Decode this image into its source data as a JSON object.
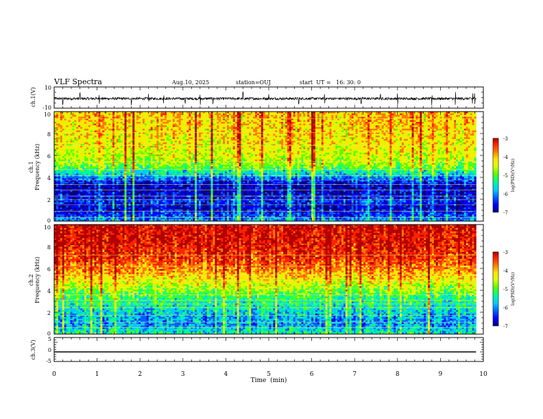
{
  "header": {
    "title": "VLF Spectra",
    "date": "Aug.10, 2025",
    "station": "station=OUJ",
    "start_ut": "start  UT =   16: 30: 0"
  },
  "colors": {
    "palette": [
      "#00007a",
      "#0000ff",
      "#0060ff",
      "#00c8ff",
      "#00ff90",
      "#5aff00",
      "#d8ff00",
      "#ffe600",
      "#ff7a00",
      "#ff2200",
      "#b00000"
    ]
  },
  "chart_data": [
    {
      "type": "line",
      "id": "ch1_waveform",
      "ylabel": "ch.1(V)",
      "ylim": [
        -10,
        10
      ],
      "ytick_labels": [
        "10",
        "-10"
      ],
      "baseline": -1,
      "noise_amplitude": 1.2,
      "spike_times_min": [
        0.2,
        0.6,
        1.05,
        1.8,
        2.2,
        2.55,
        3.05,
        3.4,
        3.7,
        4.4,
        5.0,
        5.7,
        6.3,
        7.15,
        7.6,
        8.0,
        8.8,
        9.35,
        9.75,
        9.8
      ],
      "spike_amplitude": 6
    },
    {
      "type": "heatmap",
      "id": "ch1_spectrogram",
      "ylabel_line1": "ch.1",
      "ylabel_line2": "Frequency (kHz)",
      "ylim": [
        0,
        10
      ],
      "ytick_labels": [
        "0",
        "2",
        "4",
        "6",
        "8",
        "10"
      ],
      "colorbar_label": "log(PSD)(V²/Hz)",
      "colorbar_range": [
        -7,
        -3
      ],
      "colorbar_ticks": [
        "-3",
        "-4",
        "-5",
        "-6",
        "-7"
      ],
      "band_profile_khz": [
        {
          "f": 0.0,
          "level": -5.8
        },
        {
          "f": 0.5,
          "level": -6.2
        },
        {
          "f": 1.2,
          "level": -6.6
        },
        {
          "f": 1.8,
          "level": -6.3
        },
        {
          "f": 2.4,
          "level": -6.5
        },
        {
          "f": 3.0,
          "level": -6.7
        },
        {
          "f": 3.6,
          "level": -6.4
        },
        {
          "f": 4.3,
          "level": -5.6
        },
        {
          "f": 5.2,
          "level": -4.8
        },
        {
          "f": 6.5,
          "level": -4.5
        },
        {
          "f": 8.0,
          "level": -4.3
        },
        {
          "f": 10.0,
          "level": -4.2
        }
      ],
      "strong_lines_khz": [
        0.35,
        0.9,
        1.5,
        1.95,
        2.3,
        2.85,
        3.35,
        3.75,
        4.15,
        4.7,
        5.45,
        6.9,
        8.1,
        9.35
      ]
    },
    {
      "type": "heatmap",
      "id": "ch2_spectrogram",
      "ylabel_line1": "ch.2",
      "ylabel_line2": "Frequency (kHz)",
      "ylim": [
        0,
        10
      ],
      "ytick_labels": [
        "0",
        "2",
        "4",
        "6",
        "8",
        "10"
      ],
      "colorbar_label": "log(PSD)(V²/Hz)",
      "colorbar_range": [
        -7,
        -3
      ],
      "colorbar_ticks": [
        "-3",
        "-4",
        "-5",
        "-6",
        "-7"
      ],
      "band_profile_khz": [
        {
          "f": 0.0,
          "level": -5.4
        },
        {
          "f": 0.8,
          "level": -5.9
        },
        {
          "f": 1.6,
          "level": -5.8
        },
        {
          "f": 2.4,
          "level": -5.5
        },
        {
          "f": 3.2,
          "level": -5.3
        },
        {
          "f": 4.0,
          "level": -4.9
        },
        {
          "f": 5.0,
          "level": -4.4
        },
        {
          "f": 6.0,
          "level": -3.9
        },
        {
          "f": 7.0,
          "level": -3.6
        },
        {
          "f": 8.5,
          "level": -3.4
        },
        {
          "f": 10.0,
          "level": -3.3
        }
      ],
      "strong_lines_khz": [
        0.6,
        1.1,
        1.7,
        2.4,
        2.75,
        3.1,
        3.6,
        4.2,
        4.9,
        5.4,
        6.2,
        7.2
      ]
    },
    {
      "type": "line",
      "id": "ch3_waveform",
      "ylabel": "ch.3(V)",
      "ylim": [
        -5,
        5
      ],
      "ytick_labels": [
        "5",
        "0",
        "-5"
      ],
      "constant_value": -1,
      "xlabel": "Time  (min)",
      "xlim": [
        0,
        10
      ],
      "xtick_labels": [
        "0",
        "1",
        "2",
        "3",
        "4",
        "5",
        "6",
        "7",
        "8",
        "9",
        "10"
      ],
      "data_end_min": 9.83
    }
  ]
}
